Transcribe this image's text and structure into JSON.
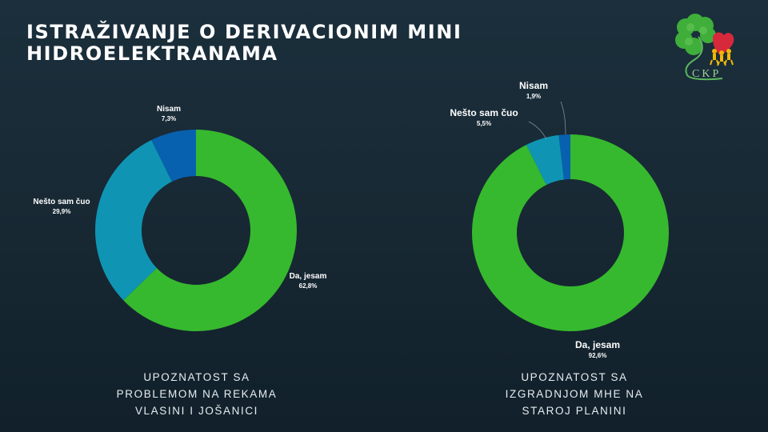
{
  "header": {
    "title_line1": "ISTRAŽIVANJE O DERIVACIONIM MINI",
    "title_line2": "HIDROELEKTRANAMA"
  },
  "logo": {
    "text": "CKP",
    "icon": "four-leaf-clover-logo-icon"
  },
  "colors": {
    "background": "#172833",
    "green": "#36b92e",
    "teal": "#0f95b3",
    "blue": "#0861ae",
    "text": "#ffffff"
  },
  "charts": [
    {
      "caption_lines": [
        "UPOZNATOST SA",
        "PROBLEMOM NA REKAMA",
        "VLASINI I JOŠANICI"
      ],
      "labels": [
        {
          "name": "Da, jesam",
          "pct": "62,8%"
        },
        {
          "name": "Nešto sam čuo",
          "pct": "29,9%"
        },
        {
          "name": "Nisam",
          "pct": "7,3%"
        }
      ]
    },
    {
      "caption_lines": [
        "UPOZNATOST SA",
        "IZGRADNJOM MHE NA",
        "STAROJ PLANINI"
      ],
      "labels": [
        {
          "name": "Da, jesam",
          "pct": "92,6%"
        },
        {
          "name": "Nešto sam čuo",
          "pct": "5,5%"
        },
        {
          "name": "Nisam",
          "pct": "1,9%"
        }
      ]
    }
  ],
  "chart_data": [
    {
      "type": "pie",
      "subtype": "donut",
      "title": "UPOZNATOST SA PROBLEMOM NA REKAMA VLASINI I JOŠANICI",
      "categories": [
        "Da, jesam",
        "Nešto sam čuo",
        "Nisam"
      ],
      "values": [
        62.8,
        29.9,
        7.3
      ],
      "unit": "%",
      "colors": [
        "#36b92e",
        "#0f95b3",
        "#0861ae"
      ],
      "start_angle": "12 o'clock, clockwise",
      "legend": "none (data labels)"
    },
    {
      "type": "pie",
      "subtype": "donut",
      "title": "UPOZNATOST SA IZGRADNJOM MHE NA STAROJ PLANINI",
      "categories": [
        "Da, jesam",
        "Nešto sam čuo",
        "Nisam"
      ],
      "values": [
        92.6,
        5.5,
        1.9
      ],
      "unit": "%",
      "colors": [
        "#36b92e",
        "#0f95b3",
        "#0861ae"
      ],
      "start_angle": "12 o'clock, clockwise",
      "legend": "none (data labels with leader lines)"
    }
  ]
}
